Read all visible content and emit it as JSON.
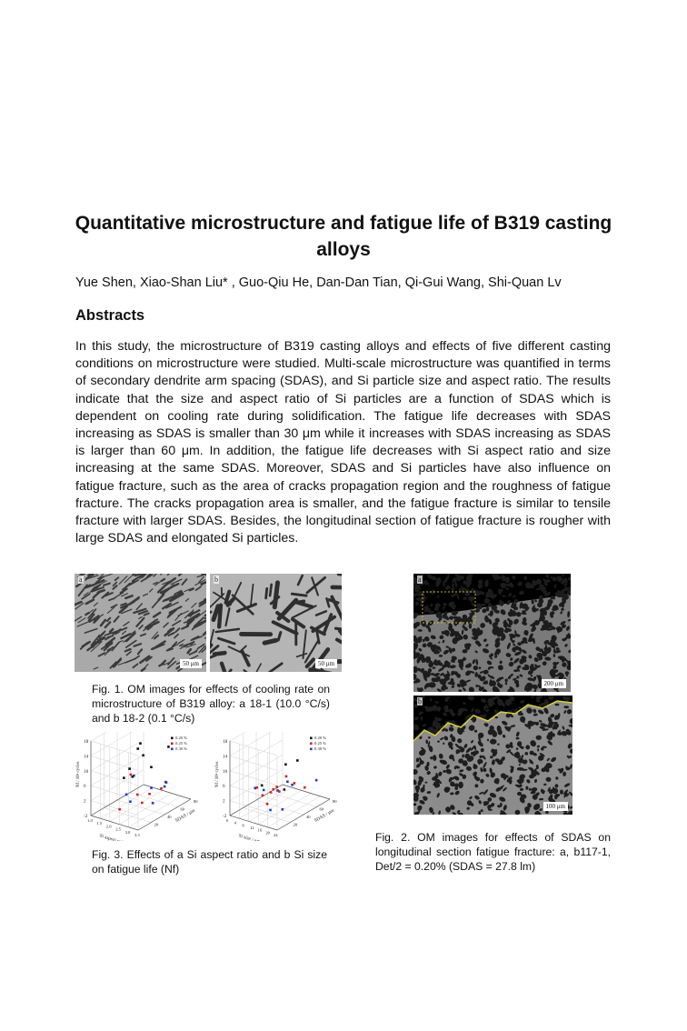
{
  "title": "Quantitative microstructure and fatigue life of B319 casting alloys",
  "authors": "Yue Shen, Xiao-Shan Liu* , Guo-Qiu He, Dan-Dan Tian, Qi-Gui Wang, Shi-Quan Lv",
  "abstract_heading": "Abstracts",
  "abstract_text": "In this study, the microstructure of B319 casting alloys and effects of five different casting conditions on microstructure were studied. Multi-scale microstructure was quantified in terms of secondary dendrite arm spacing (SDAS), and Si particle size and aspect ratio. The results indicate that the size and aspect ratio of Si particles are a function of SDAS which is dependent on cooling rate during solidification. The fatigue life decreases with SDAS increasing as SDAS is smaller than 30 μm while it increases with SDAS increasing as SDAS is larger than 60 μm. In addition, the fatigue life decreases with Si aspect ratio and size increasing at the same SDAS. Moreover, SDAS and Si particles have also influence on fatigue fracture, such as the area of cracks propagation region and the roughness of fatigue fracture. The cracks propagation area is smaller, and the fatigue fracture is similar to tensile fracture with larger SDAS. Besides, the longitudinal section of fatigue fracture is rougher with large SDAS and elongated Si particles.",
  "fig1": {
    "caption": "Fig. 1. OM images for effects of cooling rate on microstructure of B319 alloy: a 18-1 (10.0 °C/s) and b 18-2 (0.1 °C/s)",
    "panel_a": "a",
    "panel_b": "b",
    "scale_a": "50 μm",
    "scale_b": "50 μm"
  },
  "fig2": {
    "caption": "Fig. 2. OM images for effects of SDAS on longitudinal section fatigue fracture: a, b117-1, Det/2 = 0.20% (SDAS = 27.8 lm)",
    "panel_a": "a",
    "panel_b": "b",
    "scale_a": "200 μm",
    "scale_b": "100 μm"
  },
  "fig3": {
    "caption": "Fig. 3. Effects of a Si aspect ratio and b Si size on fatigue life (Nf)",
    "legend": [
      "0.20 %",
      "0.25 %",
      "0.30 %"
    ],
    "series_colors": [
      "#111111",
      "#d42020",
      "#1f3fbf"
    ],
    "z_ticks": [
      "18",
      "14",
      "10",
      "6",
      "2",
      "-2"
    ],
    "z_label": "Nf / 10⁶ cycles",
    "a": {
      "x_ticks": [
        "1.0",
        "1.5",
        "2.0",
        "2.5",
        "3.0",
        "3.5"
      ],
      "x_label": "Si aspect ratio",
      "y_ticks": [
        "20",
        "40",
        "60",
        "80"
      ],
      "y_label": "SDAS / μm"
    },
    "b": {
      "x_ticks": [
        "0",
        "4",
        "8",
        "12",
        "16",
        "20",
        "24"
      ],
      "x_label": "Si size / μm",
      "y_ticks": [
        "20",
        "40",
        "60",
        "80"
      ],
      "y_label": "SDAS / μm"
    }
  }
}
